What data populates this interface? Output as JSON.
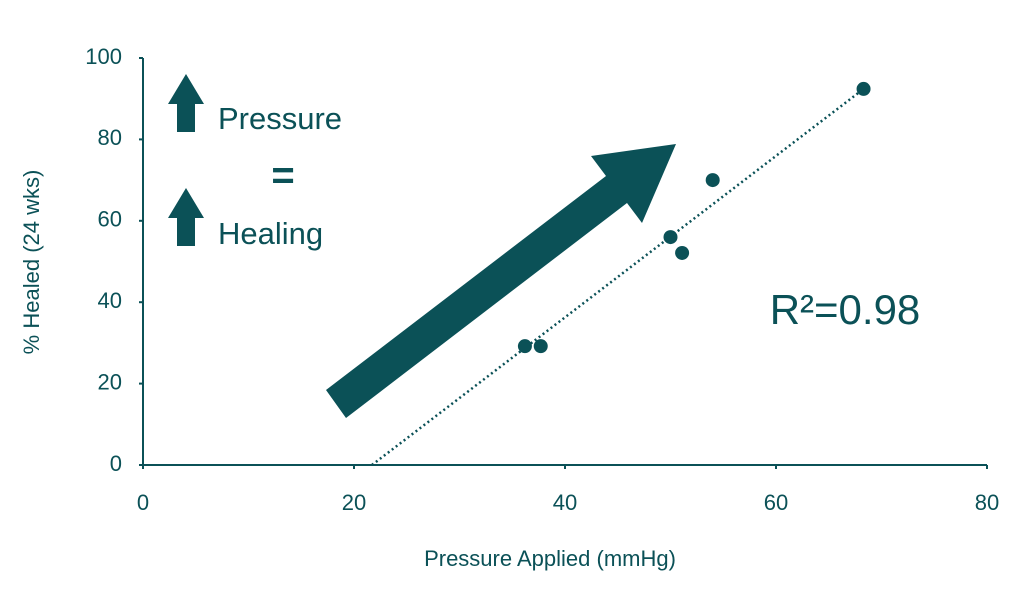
{
  "chart_data": {
    "type": "scatter",
    "x_label": "Pressure Applied (mmHg)",
    "y_label": "% Healed (24 wks)",
    "x": [
      36.2,
      37.7,
      50.0,
      51.1,
      54.0,
      68.3
    ],
    "values": [
      29.2,
      29.2,
      56.0,
      52.1,
      70.0,
      92.4
    ],
    "color": "#0b5157",
    "trendline": {
      "x": [
        21.7,
        68.3
      ],
      "values": [
        0,
        92.4
      ]
    },
    "xlim": [
      0,
      80
    ],
    "xticks": [
      0,
      20,
      40,
      60,
      80
    ],
    "ylim": [
      0,
      100
    ],
    "yticks": [
      0,
      20,
      40,
      60,
      80,
      100
    ],
    "grid": false,
    "annotations": [
      "Pressure",
      "=",
      "Healing",
      "R²=0.98"
    ]
  }
}
